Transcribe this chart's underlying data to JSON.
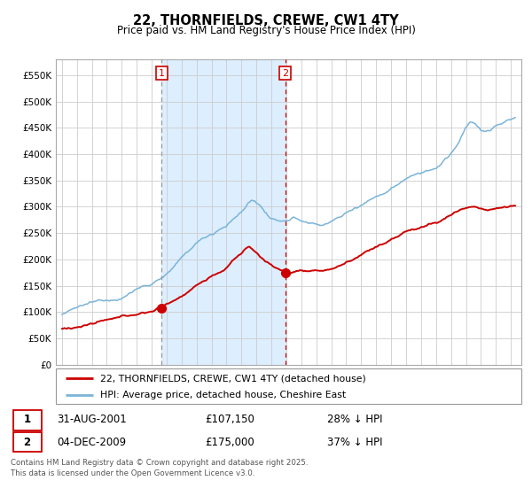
{
  "title": "22, THORNFIELDS, CREWE, CW1 4TY",
  "subtitle": "Price paid vs. HM Land Registry's House Price Index (HPI)",
  "legend_line1": "22, THORNFIELDS, CREWE, CW1 4TY (detached house)",
  "legend_line2": "HPI: Average price, detached house, Cheshire East",
  "marker1_date": "31-AUG-2001",
  "marker1_price": 107150,
  "marker1_label": "£107,150",
  "marker1_hpi": "28% ↓ HPI",
  "marker2_date": "04-DEC-2009",
  "marker2_price": 175000,
  "marker2_label": "£175,000",
  "marker2_hpi": "37% ↓ HPI",
  "footer": "Contains HM Land Registry data © Crown copyright and database right 2025.\nThis data is licensed under the Open Government Licence v3.0.",
  "hpi_color": "#7ab4d8",
  "price_color": "#cc0000",
  "marker_color": "#cc0000",
  "vline1_color": "#999999",
  "vline2_color": "#cc0000",
  "shade_color": "#ddeeff",
  "ylim": [
    0,
    580000
  ],
  "yticks": [
    0,
    50000,
    100000,
    150000,
    200000,
    250000,
    300000,
    350000,
    400000,
    450000,
    500000,
    550000
  ],
  "marker1_x_year": 2001.67,
  "marker2_x_year": 2009.92,
  "xlim_min": 1994.6,
  "xlim_max": 2025.7
}
